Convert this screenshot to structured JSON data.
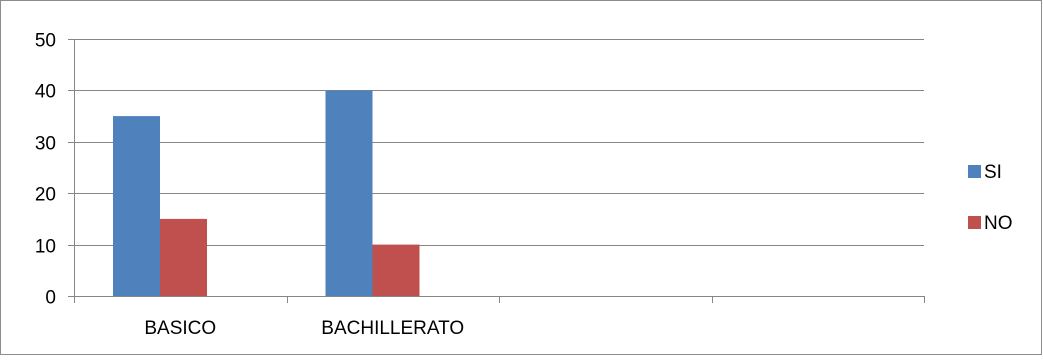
{
  "chart_data": {
    "type": "bar",
    "categories": [
      "BASICO",
      "BACHILLERATO",
      "",
      ""
    ],
    "series": [
      {
        "name": "SI",
        "values": [
          35,
          40,
          null,
          null
        ],
        "color": "#4F81BD"
      },
      {
        "name": "NO",
        "values": [
          15,
          10,
          null,
          null
        ],
        "color": "#C0504D"
      }
    ],
    "ylim": [
      0,
      50
    ],
    "yticks": [
      0,
      10,
      20,
      30,
      40,
      50
    ],
    "grid": true,
    "legend_position": "right"
  }
}
